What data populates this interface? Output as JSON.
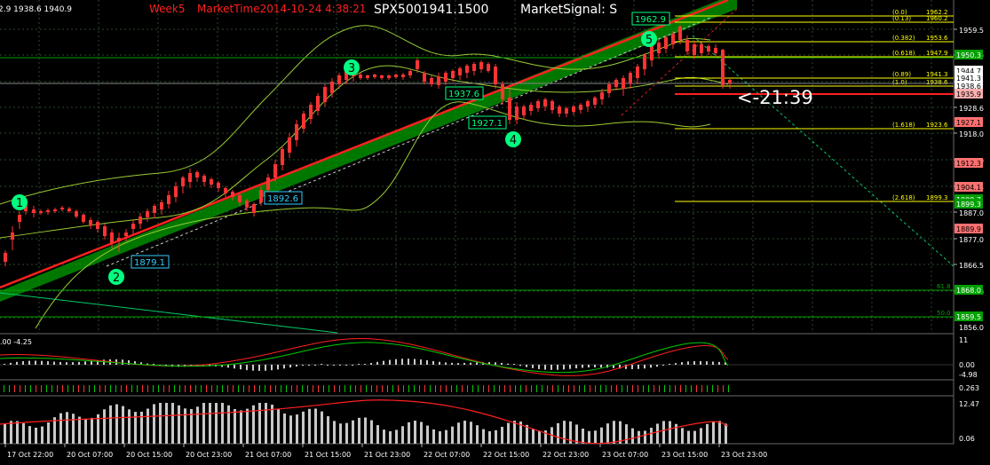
{
  "header": {
    "ohlc_text": "2.9 1938.6 1940.9",
    "week_text": "Week5",
    "market_time_text": "MarketTime2014-10-24 4:38:21",
    "symbol_text": "SPX5001941.1500",
    "signal_text": "MarketSignal: S"
  },
  "countdown": "<-21:39",
  "price_axis": {
    "ticks": [
      "1959.5",
      "1949.9",
      "1939.2",
      "1928.6",
      "1918.0",
      "1908.0",
      "1897.4",
      "1887.0",
      "1877.0",
      "1866.5",
      "1856.0"
    ],
    "markers": [
      {
        "text": "1950.3",
        "bg": "#00a000",
        "fg": "#ffffff"
      },
      {
        "text": "1944.7",
        "bg": "#ffffff",
        "fg": "#000000"
      },
      {
        "text": "1941.3",
        "bg": "#ffffff",
        "fg": "#000000"
      },
      {
        "text": "1938.6",
        "bg": "#ffffff",
        "fg": "#000000"
      },
      {
        "text": "1935.9",
        "bg": "#ffb0b0",
        "fg": "#000000"
      },
      {
        "text": "1927.1",
        "bg": "#ff7070",
        "fg": "#000000"
      },
      {
        "text": "1912.3",
        "bg": "#ff7070",
        "fg": "#000000"
      },
      {
        "text": "1904.1",
        "bg": "#ff7070",
        "fg": "#000000"
      },
      {
        "text": "1900.7",
        "bg": "#00a000",
        "fg": "#ffffff"
      },
      {
        "text": "1899.3",
        "bg": "#00a000",
        "fg": "#ffffff"
      },
      {
        "text": "1889.9",
        "bg": "#ff7070",
        "fg": "#000000"
      },
      {
        "text": "1868.0",
        "bg": "#00a000",
        "fg": "#ffffff"
      },
      {
        "text": "1859.5",
        "bg": "#00a000",
        "fg": "#ffffff"
      }
    ]
  },
  "fib_levels": [
    {
      "label": "(0.0)",
      "value": "1962.2"
    },
    {
      "label": "(0.13)",
      "value": "1960.2"
    },
    {
      "label": "(0.382)",
      "value": "1953.6"
    },
    {
      "label": "(0.618)",
      "value": "1947.9"
    },
    {
      "label": "(0.89)",
      "value": "1941.3"
    },
    {
      "label": "(1.0)",
      "value": "1938.6"
    },
    {
      "label": "(1.618)",
      "value": "1923.6"
    },
    {
      "label": "(2.618)",
      "value": "1899.3"
    }
  ],
  "fib_side_labels": [
    "61.8",
    "50.0"
  ],
  "price_labels": [
    {
      "text": "1962.9",
      "color": "#00ff7f"
    },
    {
      "text": "1937.6",
      "color": "#00ff7f"
    },
    {
      "text": "1927.1",
      "color": "#00ff7f"
    },
    {
      "text": "1892.6",
      "color": "#33ccff"
    },
    {
      "text": "1879.1",
      "color": "#33ccff"
    }
  ],
  "wave_labels": [
    "1",
    "2",
    "3",
    "4",
    "5"
  ],
  "macd_panel": {
    "header": ".00 -4.25",
    "axis": [
      "11",
      "0.00",
      "-4.98"
    ]
  },
  "mini_panel": {
    "axis": [
      "0.263"
    ]
  },
  "volume_panel": {
    "axis": [
      "12.47",
      "0.06"
    ]
  },
  "time_axis": [
    "17 Oct 22:00",
    "20 Oct 07:00",
    "20 Oct 15:00",
    "20 Oct 23:00",
    "21 Oct 07:00",
    "21 Oct 15:00",
    "21 Oct 23:00",
    "22 Oct 07:00",
    "22 Oct 15:00",
    "22 Oct 23:00",
    "23 Oct 07:00",
    "23 Oct 15:00",
    "23 Oct 23:00"
  ],
  "colors": {
    "background": "#000000",
    "grid": "#2a4a2a",
    "bull": "#ffffff",
    "bear": "#ff3333",
    "channel_fill": "#00a000",
    "trendline": "#ff2020",
    "bollinger": "#9acd32",
    "fib": "#ffff00",
    "text_red": "#ff2020",
    "text_white": "#ffffff"
  }
}
